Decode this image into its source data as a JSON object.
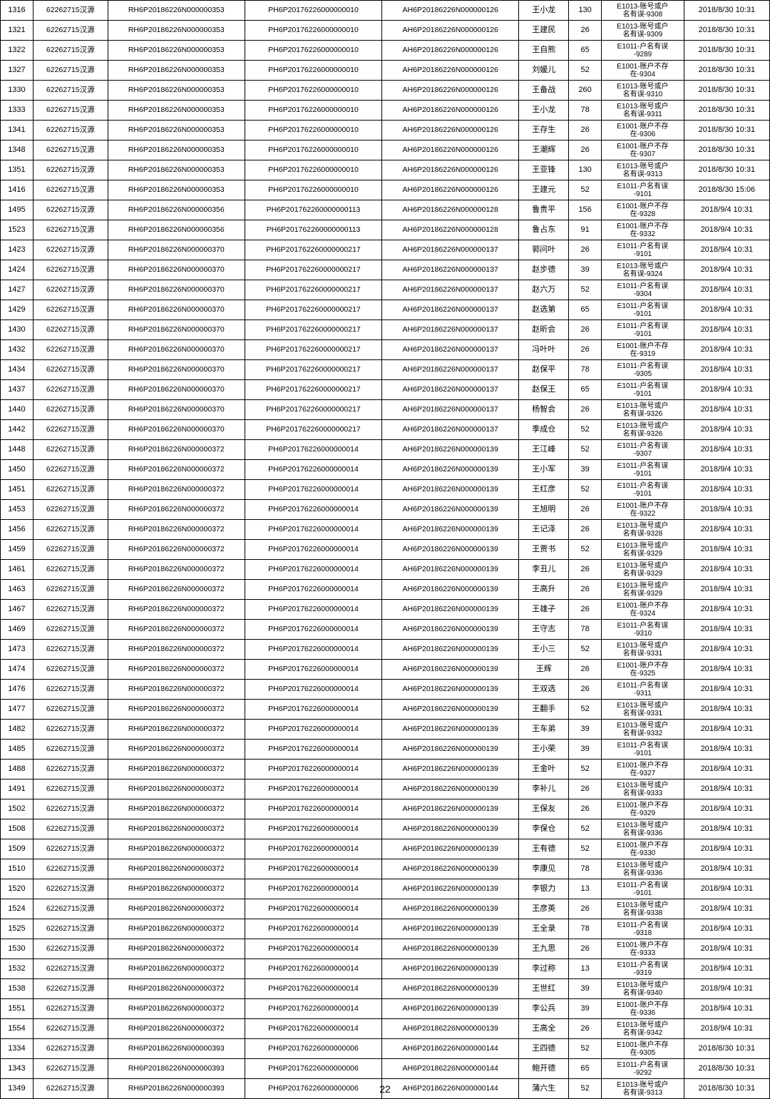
{
  "col_widths_class": [
    "c0",
    "c1",
    "c2",
    "c3",
    "c4",
    "c5",
    "c6",
    "c7",
    "c8"
  ],
  "page_number": "22",
  "watermark": "",
  "rows": [
    {
      "id": "1316",
      "org": "62262715汉源",
      "r": "RH6P20186226N000000353",
      "p": "PH6P20176226000000010",
      "a": "AH6P20186226N000000126",
      "name": "王小龙",
      "amt": "130",
      "err": [
        "E1013-账号或户",
        "名有误-9308"
      ],
      "dt": "2018/8/30 10:31"
    },
    {
      "id": "1321",
      "org": "62262715汉源",
      "r": "RH6P20186226N000000353",
      "p": "PH6P20176226000000010",
      "a": "AH6P20186226N000000126",
      "name": "王建民",
      "amt": "26",
      "err": [
        "E1013-账号或户",
        "名有误-9309"
      ],
      "dt": "2018/8/30 10:31"
    },
    {
      "id": "1322",
      "org": "62262715汉源",
      "r": "RH6P20186226N000000353",
      "p": "PH6P20176226000000010",
      "a": "AH6P20186226N000000126",
      "name": "王自熊",
      "amt": "65",
      "err": [
        "E1011-户名有误",
        "-9289"
      ],
      "dt": "2018/8/30 10:31"
    },
    {
      "id": "1327",
      "org": "62262715汉源",
      "r": "RH6P20186226N000000353",
      "p": "PH6P20176226000000010",
      "a": "AH6P20186226N000000126",
      "name": "刘媛儿",
      "amt": "52",
      "err": [
        "E1001-账户不存",
        "在-9304"
      ],
      "dt": "2018/8/30 10:31"
    },
    {
      "id": "1330",
      "org": "62262715汉源",
      "r": "RH6P20186226N000000353",
      "p": "PH6P20176226000000010",
      "a": "AH6P20186226N000000126",
      "name": "王备战",
      "amt": "260",
      "err": [
        "E1013-账号或户",
        "名有误-9310"
      ],
      "dt": "2018/8/30 10:31"
    },
    {
      "id": "1333",
      "org": "62262715汉源",
      "r": "RH6P20186226N000000353",
      "p": "PH6P20176226000000010",
      "a": "AH6P20186226N000000126",
      "name": "王小龙",
      "amt": "78",
      "err": [
        "E1013-账号或户",
        "名有误-9311"
      ],
      "dt": "2018/8/30 10:31"
    },
    {
      "id": "1341",
      "org": "62262715汉源",
      "r": "RH6P20186226N000000353",
      "p": "PH6P20176226000000010",
      "a": "AH6P20186226N000000126",
      "name": "王存生",
      "amt": "26",
      "err": [
        "E1001-账户不存",
        "在-9306"
      ],
      "dt": "2018/8/30 10:31"
    },
    {
      "id": "1348",
      "org": "62262715汉源",
      "r": "RH6P20186226N000000353",
      "p": "PH6P20176226000000010",
      "a": "AH6P20186226N000000126",
      "name": "王潮辉",
      "amt": "26",
      "err": [
        "E1001-账户不存",
        "在-9307"
      ],
      "dt": "2018/8/30 10:31"
    },
    {
      "id": "1351",
      "org": "62262715汉源",
      "r": "RH6P20186226N000000353",
      "p": "PH6P20176226000000010",
      "a": "AH6P20186226N000000126",
      "name": "王亚锋",
      "amt": "130",
      "err": [
        "E1013-账号或户",
        "名有误-9313"
      ],
      "dt": "2018/8/30 10:31"
    },
    {
      "id": "1416",
      "org": "62262715汉源",
      "r": "RH6P20186226N000000353",
      "p": "PH6P20176226000000010",
      "a": "AH6P20186226N000000126",
      "name": "王建元",
      "amt": "52",
      "err": [
        "E1011-户名有误",
        "-9101"
      ],
      "dt": "2018/8/30 15:06"
    },
    {
      "id": "1495",
      "org": "62262715汉源",
      "r": "RH6P20186226N000000356",
      "p": "PH6P201762260000000113",
      "a": "AH6P20186226N000000128",
      "name": "鲁贵平",
      "amt": "156",
      "err": [
        "E1001-账户不存",
        "在-9328"
      ],
      "dt": "2018/9/4 10:31"
    },
    {
      "id": "1523",
      "org": "62262715汉源",
      "r": "RH6P20186226N000000356",
      "p": "PH6P201762260000000113",
      "a": "AH6P20186226N000000128",
      "name": "鲁占东",
      "amt": "91",
      "err": [
        "E1001-账户不存",
        "在-9332"
      ],
      "dt": "2018/9/4 10:31"
    },
    {
      "id": "1423",
      "org": "62262715汉源",
      "r": "RH6P20186226N000000370",
      "p": "PH6P201762260000000217",
      "a": "AH6P20186226N000000137",
      "name": "郭问叶",
      "amt": "26",
      "err": [
        "E1011-户名有误",
        "-9101"
      ],
      "dt": "2018/9/4 10:31"
    },
    {
      "id": "1424",
      "org": "62262715汉源",
      "r": "RH6P20186226N000000370",
      "p": "PH6P201762260000000217",
      "a": "AH6P20186226N000000137",
      "name": "赵步德",
      "amt": "39",
      "err": [
        "E1013-账号或户",
        "名有误-9324"
      ],
      "dt": "2018/9/4 10:31"
    },
    {
      "id": "1427",
      "org": "62262715汉源",
      "r": "RH6P20186226N000000370",
      "p": "PH6P201762260000000217",
      "a": "AH6P20186226N000000137",
      "name": "赵六万",
      "amt": "52",
      "err": [
        "E1011-户名有误",
        "-9304"
      ],
      "dt": "2018/9/4 10:31"
    },
    {
      "id": "1429",
      "org": "62262715汉源",
      "r": "RH6P20186226N000000370",
      "p": "PH6P201762260000000217",
      "a": "AH6P20186226N000000137",
      "name": "赵选第",
      "amt": "65",
      "err": [
        "E1011-户名有误",
        "-9101"
      ],
      "dt": "2018/9/4 10:31"
    },
    {
      "id": "1430",
      "org": "62262715汉源",
      "r": "RH6P20186226N000000370",
      "p": "PH6P201762260000000217",
      "a": "AH6P20186226N000000137",
      "name": "赵昕会",
      "amt": "26",
      "err": [
        "E1011-户名有误",
        "-9101"
      ],
      "dt": "2018/9/4 10:31"
    },
    {
      "id": "1432",
      "org": "62262715汉源",
      "r": "RH6P20186226N000000370",
      "p": "PH6P201762260000000217",
      "a": "AH6P20186226N000000137",
      "name": "冯叶叶",
      "amt": "26",
      "err": [
        "E1001-账户不存",
        "在-9319"
      ],
      "dt": "2018/9/4 10:31"
    },
    {
      "id": "1434",
      "org": "62262715汉源",
      "r": "RH6P20186226N000000370",
      "p": "PH6P201762260000000217",
      "a": "AH6P20186226N000000137",
      "name": "赵保平",
      "amt": "78",
      "err": [
        "E1011-户名有误",
        "-9305"
      ],
      "dt": "2018/9/4 10:31"
    },
    {
      "id": "1437",
      "org": "62262715汉源",
      "r": "RH6P20186226N000000370",
      "p": "PH6P201762260000000217",
      "a": "AH6P20186226N000000137",
      "name": "赵保王",
      "amt": "65",
      "err": [
        "E1011-户名有误",
        "-9101"
      ],
      "dt": "2018/9/4 10:31"
    },
    {
      "id": "1440",
      "org": "62262715汉源",
      "r": "RH6P20186226N000000370",
      "p": "PH6P201762260000000217",
      "a": "AH6P20186226N000000137",
      "name": "杨智会",
      "amt": "26",
      "err": [
        "E1013-账号或户",
        "名有误-9326"
      ],
      "dt": "2018/9/4 10:31"
    },
    {
      "id": "1442",
      "org": "62262715汉源",
      "r": "RH6P20186226N000000370",
      "p": "PH6P201762260000000217",
      "a": "AH6P20186226N000000137",
      "name": "季成仓",
      "amt": "52",
      "err": [
        "E1013-账号或户",
        "名有误-9326"
      ],
      "dt": "2018/9/4 10:31"
    },
    {
      "id": "1448",
      "org": "62262715汉源",
      "r": "RH6P20186226N000000372",
      "p": "PH6P20176226000000014",
      "a": "AH6P20186226N000000139",
      "name": "王江峰",
      "amt": "52",
      "err": [
        "E1011-户名有误",
        "-9307"
      ],
      "dt": "2018/9/4 10:31"
    },
    {
      "id": "1450",
      "org": "62262715汉源",
      "r": "RH6P20186226N000000372",
      "p": "PH6P20176226000000014",
      "a": "AH6P20186226N000000139",
      "name": "王小军",
      "amt": "39",
      "err": [
        "E1011-户名有误",
        "-9101"
      ],
      "dt": "2018/9/4 10:31"
    },
    {
      "id": "1451",
      "org": "62262715汉源",
      "r": "RH6P20186226N000000372",
      "p": "PH6P20176226000000014",
      "a": "AH6P20186226N000000139",
      "name": "王红彦",
      "amt": "52",
      "err": [
        "E1011-户名有误",
        "-9101"
      ],
      "dt": "2018/9/4 10:31"
    },
    {
      "id": "1453",
      "org": "62262715汉源",
      "r": "RH6P20186226N000000372",
      "p": "PH6P20176226000000014",
      "a": "AH6P20186226N000000139",
      "name": "王旭明",
      "amt": "26",
      "err": [
        "E1001-账户不存",
        "在-9322"
      ],
      "dt": "2018/9/4 10:31"
    },
    {
      "id": "1456",
      "org": "62262715汉源",
      "r": "RH6P20186226N000000372",
      "p": "PH6P20176226000000014",
      "a": "AH6P20186226N000000139",
      "name": "王记泽",
      "amt": "26",
      "err": [
        "E1013-账号或户",
        "名有误-9328"
      ],
      "dt": "2018/9/4 10:31"
    },
    {
      "id": "1459",
      "org": "62262715汉源",
      "r": "RH6P20186226N000000372",
      "p": "PH6P20176226000000014",
      "a": "AH6P20186226N000000139",
      "name": "王贾书",
      "amt": "52",
      "err": [
        "E1013-账号或户",
        "名有误-9329"
      ],
      "dt": "2018/9/4 10:31"
    },
    {
      "id": "1461",
      "org": "62262715汉源",
      "r": "RH6P20186226N000000372",
      "p": "PH6P20176226000000014",
      "a": "AH6P20186226N000000139",
      "name": "李丑儿",
      "amt": "26",
      "err": [
        "E1013-账号或户",
        "名有误-9329"
      ],
      "dt": "2018/9/4 10:31"
    },
    {
      "id": "1463",
      "org": "62262715汉源",
      "r": "RH6P20186226N000000372",
      "p": "PH6P20176226000000014",
      "a": "AH6P20186226N000000139",
      "name": "王高升",
      "amt": "26",
      "err": [
        "E1013-账号或户",
        "名有误-9329"
      ],
      "dt": "2018/9/4 10:31"
    },
    {
      "id": "1467",
      "org": "62262715汉源",
      "r": "RH6P20186226N000000372",
      "p": "PH6P20176226000000014",
      "a": "AH6P20186226N000000139",
      "name": "王雄子",
      "amt": "26",
      "err": [
        "E1001-账户不存",
        "在-9324"
      ],
      "dt": "2018/9/4 10:31"
    },
    {
      "id": "1469",
      "org": "62262715汉源",
      "r": "RH6P20186226N000000372",
      "p": "PH6P20176226000000014",
      "a": "AH6P20186226N000000139",
      "name": "王守志",
      "amt": "78",
      "err": [
        "E1011-户名有误",
        "-9310"
      ],
      "dt": "2018/9/4 10:31"
    },
    {
      "id": "1473",
      "org": "62262715汉源",
      "r": "RH6P20186226N000000372",
      "p": "PH6P20176226000000014",
      "a": "AH6P20186226N000000139",
      "name": "王小三",
      "amt": "52",
      "err": [
        "E1013-账号或户",
        "名有误-9331"
      ],
      "dt": "2018/9/4 10:31"
    },
    {
      "id": "1474",
      "org": "62262715汉源",
      "r": "RH6P20186226N000000372",
      "p": "PH6P20176226000000014",
      "a": "AH6P20186226N000000139",
      "name": "王辉",
      "amt": "26",
      "err": [
        "E1001-账户不存",
        "在-9325"
      ],
      "dt": "2018/9/4 10:31"
    },
    {
      "id": "1476",
      "org": "62262715汉源",
      "r": "RH6P20186226N000000372",
      "p": "PH6P20176226000000014",
      "a": "AH6P20186226N000000139",
      "name": "王双选",
      "amt": "26",
      "err": [
        "E1011-户名有误",
        "-9311"
      ],
      "dt": "2018/9/4 10:31"
    },
    {
      "id": "1477",
      "org": "62262715汉源",
      "r": "RH6P20186226N000000372",
      "p": "PH6P20176226000000014",
      "a": "AH6P20186226N000000139",
      "name": "王翻手",
      "amt": "52",
      "err": [
        "E1013-账号或户",
        "名有误-9331"
      ],
      "dt": "2018/9/4 10:31"
    },
    {
      "id": "1482",
      "org": "62262715汉源",
      "r": "RH6P20186226N000000372",
      "p": "PH6P20176226000000014",
      "a": "AH6P20186226N000000139",
      "name": "王车弟",
      "amt": "39",
      "err": [
        "E1013-账号或户",
        "名有误-9332"
      ],
      "dt": "2018/9/4 10:31"
    },
    {
      "id": "1485",
      "org": "62262715汉源",
      "r": "RH6P20186226N000000372",
      "p": "PH6P20176226000000014",
      "a": "AH6P20186226N000000139",
      "name": "王小荣",
      "amt": "39",
      "err": [
        "E1011-户名有误",
        "-9101"
      ],
      "dt": "2018/9/4 10:31"
    },
    {
      "id": "1488",
      "org": "62262715汉源",
      "r": "RH6P20186226N000000372",
      "p": "PH6P20176226000000014",
      "a": "AH6P20186226N000000139",
      "name": "王金叶",
      "amt": "52",
      "err": [
        "E1001-账户不存",
        "在-9327"
      ],
      "dt": "2018/9/4 10:31"
    },
    {
      "id": "1491",
      "org": "62262715汉源",
      "r": "RH6P20186226N000000372",
      "p": "PH6P20176226000000014",
      "a": "AH6P20186226N000000139",
      "name": "李补儿",
      "amt": "26",
      "err": [
        "E1013-账号或户",
        "名有误-9333"
      ],
      "dt": "2018/9/4 10:31"
    },
    {
      "id": "1502",
      "org": "62262715汉源",
      "r": "RH6P20186226N000000372",
      "p": "PH6P20176226000000014",
      "a": "AH6P20186226N000000139",
      "name": "王保友",
      "amt": "26",
      "err": [
        "E1001-账户不存",
        "在-9329"
      ],
      "dt": "2018/9/4 10:31"
    },
    {
      "id": "1508",
      "org": "62262715汉源",
      "r": "RH6P20186226N000000372",
      "p": "PH6P20176226000000014",
      "a": "AH6P20186226N000000139",
      "name": "李保仓",
      "amt": "52",
      "err": [
        "E1013-账号或户",
        "名有误-9336"
      ],
      "dt": "2018/9/4 10:31"
    },
    {
      "id": "1509",
      "org": "62262715汉源",
      "r": "RH6P20186226N000000372",
      "p": "PH6P20176226000000014",
      "a": "AH6P20186226N000000139",
      "name": "王有德",
      "amt": "52",
      "err": [
        "E1001-账户不存",
        "在-9330"
      ],
      "dt": "2018/9/4 10:31"
    },
    {
      "id": "1510",
      "org": "62262715汉源",
      "r": "RH6P20186226N000000372",
      "p": "PH6P20176226000000014",
      "a": "AH6P20186226N000000139",
      "name": "李康见",
      "amt": "78",
      "err": [
        "E1013-账号或户",
        "名有误-9336"
      ],
      "dt": "2018/9/4 10:31"
    },
    {
      "id": "1520",
      "org": "62262715汉源",
      "r": "RH6P20186226N000000372",
      "p": "PH6P20176226000000014",
      "a": "AH6P20186226N000000139",
      "name": "李银力",
      "amt": "13",
      "err": [
        "E1011-户名有误",
        "-9101"
      ],
      "dt": "2018/9/4 10:31"
    },
    {
      "id": "1524",
      "org": "62262715汉源",
      "r": "RH6P20186226N000000372",
      "p": "PH6P20176226000000014",
      "aoj": "",
      "a": "AH6P20186226N000000139",
      "name": "王彦英",
      "amt": "26",
      "err": [
        "E1013-账号或户",
        "名有误-9338"
      ],
      "dt": "2018/9/4 10:31"
    },
    {
      "id": "1525",
      "org": "62262715汉源",
      "r": "RH6P20186226N000000372",
      "p": "PH6P20176226000000014",
      "a": "AH6P20186226N000000139",
      "name": "王全录",
      "amt": "78",
      "err": [
        "E1011-户名有误",
        "-9318"
      ],
      "dt": "2018/9/4 10:31"
    },
    {
      "id": "1530",
      "org": "62262715汉源",
      "r": "RH6P20186226N000000372",
      "p": "PH6P20176226000000014",
      "a": "AH6P20186226N000000139",
      "name": "王九思",
      "amt": "26",
      "err": [
        "E1001-账户不存",
        "在-9333"
      ],
      "dt": "2018/9/4 10:31"
    },
    {
      "id": "1532",
      "org": "62262715汉源",
      "r": "RH6P20186226N000000372",
      "p": "PH6P20176226000000014",
      "a": "AH6P20186226N000000139",
      "name": "李过称",
      "amt": "13",
      "err": [
        "E1011-户名有误",
        "-9319"
      ],
      "dt": "2018/9/4 10:31"
    },
    {
      "id": "1538",
      "org": "62262715汉源",
      "r": "RH6P20186226N000000372",
      "p": "PH6P20176226000000014",
      "a": "AH6P20186226N000000139",
      "name": "王世红",
      "amt": "39",
      "err": [
        "E1013-账号或户",
        "名有误-9340"
      ],
      "dt": "2018/9/4 10:31"
    },
    {
      "id": "1551",
      "org": "62262715汉源",
      "r": "RH6P20186226N000000372",
      "p": "PH6P20176226000000014",
      "a": "AH6P20186226N000000139",
      "name": "李公兵",
      "amt": "39",
      "err": [
        "E1001-账户不存",
        "在-9336"
      ],
      "dt": "2018/9/4 10:31"
    },
    {
      "id": "1554",
      "org": "62262715汉源",
      "r": "RH6P20186226N000000372",
      "p": "PH6P20176226000000014",
      "a": "AH6P20186226N000000139",
      "name": "王高全",
      "amt": "26",
      "err": [
        "E1013-账号或户",
        "名有误-9342"
      ],
      "dt": "2018/9/4 10:31"
    },
    {
      "id": "1334",
      "org": "62262715汉源",
      "r": "RH6P20186226N000000393",
      "p": "PH6P20176226000000006",
      "a": "AH6P20186226N000000144",
      "name": "王四德",
      "amt": "52",
      "err": [
        "E1001-账户不存",
        "在-9305"
      ],
      "dt": "2018/8/30 10:31"
    },
    {
      "id": "1343",
      "org": "62262715汉源",
      "r": "RH6P20186226N000000393",
      "p": "PH6P20176226000000006",
      "a": "AH6P20186226N000000144",
      "name": "鲍开德",
      "amt": "65",
      "err": [
        "E1011-户名有误",
        "-9292"
      ],
      "dt": "2018/8/30 10:31"
    },
    {
      "id": "1349",
      "org": "62262715汉源",
      "r": "RH6P20186226N000000393",
      "p": "PH6P20176226000000006",
      "a": "AH6P20186226N000000144",
      "name": "蒲六生",
      "amt": "52",
      "err": [
        "E1013-账号或户",
        "名有误-9313"
      ],
      "dt": "2018/8/30 10:31"
    }
  ]
}
